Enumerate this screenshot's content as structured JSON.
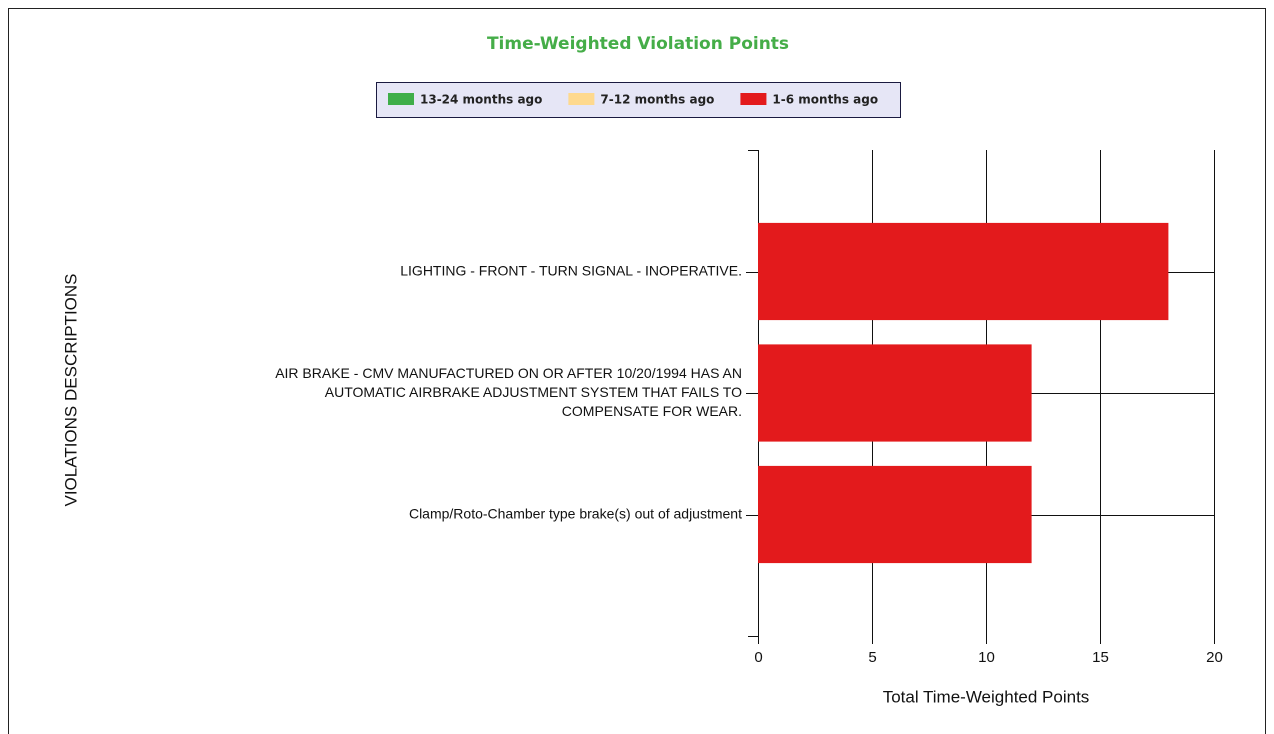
{
  "chart_data": {
    "type": "stacked_bar_horizontal",
    "title": "Time-Weighted Violation Points",
    "categories": [
      "LIGHTING - FRONT - TURN SIGNAL - INOPERATIVE.",
      "AIR BRAKE - CMV MANUFACTURED ON OR AFTER 10/20/1994 HAS AN\nAUTOMATIC AIRBRAKE ADJUSTMENT SYSTEM THAT FAILS TO\nCOMPENSATE FOR WEAR.",
      "Clamp/Roto-Chamber type brake(s) out of adjustment"
    ],
    "series": [
      {
        "name": "13-24 months ago",
        "color": "#3fae49",
        "values": [
          0,
          0,
          0
        ]
      },
      {
        "name": "7-12 months ago",
        "color": "#fed98e",
        "values": [
          0,
          0,
          0
        ]
      },
      {
        "name": "1-6 months ago",
        "color": "#e31a1c",
        "values": [
          18,
          12,
          12
        ]
      }
    ],
    "xlim": [
      0,
      20
    ],
    "xticks": [
      0,
      5,
      10,
      15,
      20
    ],
    "xlabel": "Total Time-Weighted Points",
    "ylabel": "VIOLATIONS DESCRIPTIONS",
    "grid": true,
    "legend": "top"
  }
}
